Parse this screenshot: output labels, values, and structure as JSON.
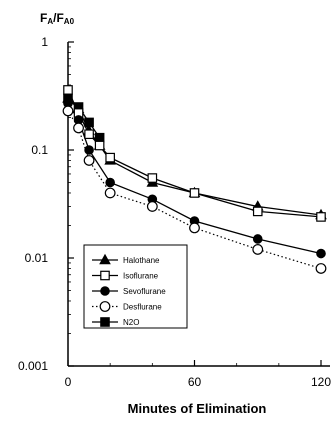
{
  "chart_data": {
    "type": "line",
    "title": "",
    "xlabel": "Minutes of Elimination",
    "ylabel": "FA/FA0",
    "ylabel_main": "F",
    "ylabel_sub1": "A",
    "ylabel_mid": "/F",
    "ylabel_sub2": "A0",
    "x_scale": "linear",
    "y_scale": "log",
    "xlim": [
      0,
      120
    ],
    "ylim": [
      0.001,
      1
    ],
    "x_ticks": [
      0,
      60,
      120
    ],
    "x_tick_labels": [
      "0",
      "60",
      "120"
    ],
    "y_ticks": [
      1,
      0.1,
      0.01,
      0.001
    ],
    "y_tick_labels": [
      "1",
      "0.1",
      "0.01",
      "0.001"
    ],
    "legend_position": "lower-left",
    "grid": false,
    "series": [
      {
        "name": "Halothane",
        "marker": "triangle",
        "line": "solid",
        "x": [
          0,
          5,
          10,
          15,
          20,
          40,
          60,
          90,
          120
        ],
        "y": [
          0.3,
          0.24,
          0.15,
          0.11,
          0.08,
          0.05,
          0.04,
          0.03,
          0.025
        ]
      },
      {
        "name": "Isoflurane",
        "marker": "open-square",
        "line": "solid",
        "x": [
          0,
          5,
          10,
          15,
          20,
          40,
          60,
          90,
          120
        ],
        "y": [
          0.36,
          0.22,
          0.14,
          0.11,
          0.085,
          0.055,
          0.04,
          0.027,
          0.024
        ]
      },
      {
        "name": "Sevoflurane",
        "marker": "filled-circle",
        "line": "solid",
        "x": [
          0,
          5,
          10,
          20,
          40,
          60,
          90,
          120
        ],
        "y": [
          0.27,
          0.19,
          0.1,
          0.05,
          0.035,
          0.022,
          0.015,
          0.011
        ]
      },
      {
        "name": "Desflurane",
        "marker": "open-circle",
        "line": "dotted",
        "x": [
          0,
          5,
          10,
          20,
          40,
          60,
          90,
          120
        ],
        "y": [
          0.23,
          0.16,
          0.08,
          0.04,
          0.03,
          0.019,
          0.012,
          0.008
        ]
      },
      {
        "name": "N2O",
        "marker": "filled-square",
        "line": "solid",
        "x": [
          0,
          5,
          10,
          15
        ],
        "y": [
          0.3,
          0.25,
          0.18,
          0.13
        ]
      }
    ]
  }
}
